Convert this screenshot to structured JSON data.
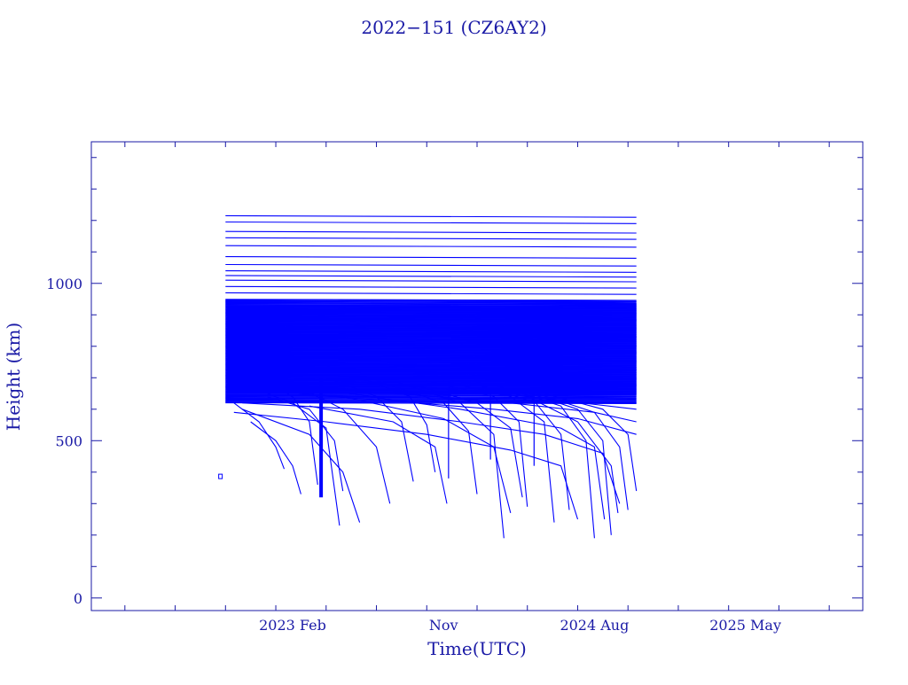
{
  "chart_data": {
    "type": "line",
    "title": "2022−151 (CZ6AY2)",
    "xlabel": "Time(UTC)",
    "ylabel": "Height (km)",
    "x_ticks": [
      "2023 Feb",
      "Nov",
      "2024 Aug",
      "2025 May"
    ],
    "y_ticks": [
      "0",
      "500",
      "1000"
    ],
    "xlim_months": [
      -12,
      34
    ],
    "ylim": [
      -40,
      1450
    ],
    "grid": false,
    "legend": "none",
    "colors": {
      "series": "#0000ff",
      "axes": "#1a1aa6"
    },
    "data_window_months": [
      -4.3,
      20.5
    ],
    "band": {
      "from": 620,
      "to": 950,
      "start_month": -4.0,
      "end_month": 20.5
    },
    "series": [
      {
        "values": [
          [
            -4.0,
            1215
          ],
          [
            20.5,
            1210
          ]
        ]
      },
      {
        "values": [
          [
            -4.0,
            1195
          ],
          [
            20.5,
            1190
          ]
        ]
      },
      {
        "values": [
          [
            -4.0,
            1165
          ],
          [
            20.5,
            1160
          ]
        ]
      },
      {
        "values": [
          [
            -4.0,
            1145
          ],
          [
            20.5,
            1140
          ]
        ]
      },
      {
        "values": [
          [
            -4.0,
            1120
          ],
          [
            20.5,
            1115
          ]
        ]
      },
      {
        "values": [
          [
            -4.0,
            1085
          ],
          [
            20.5,
            1080
          ]
        ]
      },
      {
        "values": [
          [
            -4.0,
            1060
          ],
          [
            20.5,
            1055
          ]
        ]
      },
      {
        "values": [
          [
            -4.0,
            1040
          ],
          [
            20.5,
            1035
          ]
        ]
      },
      {
        "values": [
          [
            -4.0,
            1025
          ],
          [
            20.5,
            1020
          ]
        ]
      },
      {
        "values": [
          [
            -4.0,
            1010
          ],
          [
            20.5,
            1005
          ]
        ]
      },
      {
        "values": [
          [
            -4.0,
            990
          ],
          [
            20.5,
            985
          ]
        ]
      },
      {
        "values": [
          [
            -4.0,
            970
          ],
          [
            20.5,
            965
          ]
        ]
      },
      {
        "values": [
          [
            -2.0,
            700
          ],
          [
            0.0,
            640
          ],
          [
            1.0,
            560
          ],
          [
            1.5,
            360
          ]
        ]
      },
      {
        "values": [
          [
            -3.0,
            680
          ],
          [
            0.0,
            620
          ],
          [
            2.0,
            540
          ],
          [
            2.8,
            230
          ]
        ]
      },
      {
        "values": [
          [
            -3.5,
            620
          ],
          [
            -2.0,
            560
          ],
          [
            -1.0,
            480
          ],
          [
            -0.5,
            410
          ]
        ]
      },
      {
        "values": [
          [
            -3.0,
            600
          ],
          [
            1.0,
            520
          ],
          [
            3.0,
            400
          ],
          [
            4.0,
            240
          ]
        ]
      },
      {
        "values": [
          [
            0.0,
            680
          ],
          [
            3.0,
            600
          ],
          [
            5.0,
            480
          ],
          [
            5.8,
            300
          ]
        ]
      },
      {
        "values": [
          [
            2.0,
            700
          ],
          [
            5.0,
            640
          ],
          [
            6.5,
            560
          ],
          [
            7.2,
            370
          ]
        ]
      },
      {
        "values": [
          [
            4.0,
            700
          ],
          [
            7.0,
            640
          ],
          [
            8.0,
            550
          ],
          [
            8.5,
            400
          ]
        ]
      },
      {
        "values": [
          [
            5.0,
            690
          ],
          [
            9.0,
            620
          ],
          [
            10.5,
            530
          ],
          [
            11.0,
            330
          ]
        ]
      },
      {
        "values": [
          [
            6.0,
            690
          ],
          [
            10.0,
            620
          ],
          [
            12.0,
            520
          ],
          [
            12.6,
            190
          ]
        ]
      },
      {
        "values": [
          [
            8.0,
            690
          ],
          [
            12.0,
            640
          ],
          [
            13.5,
            560
          ],
          [
            14.0,
            290
          ]
        ]
      },
      {
        "values": [
          [
            9.0,
            690
          ],
          [
            13.0,
            640
          ],
          [
            15.0,
            560
          ],
          [
            15.6,
            240
          ]
        ]
      },
      {
        "values": [
          [
            11.0,
            680
          ],
          [
            14.5,
            620
          ],
          [
            16.0,
            520
          ],
          [
            16.5,
            280
          ]
        ]
      },
      {
        "values": [
          [
            12.0,
            680
          ],
          [
            16.0,
            610
          ],
          [
            17.5,
            500
          ],
          [
            18.0,
            190
          ]
        ]
      },
      {
        "values": [
          [
            13.0,
            670
          ],
          [
            17.0,
            600
          ],
          [
            18.5,
            500
          ],
          [
            19.0,
            200
          ]
        ]
      },
      {
        "values": [
          [
            14.0,
            660
          ],
          [
            18.0,
            590
          ],
          [
            19.5,
            480
          ],
          [
            20.0,
            280
          ]
        ]
      },
      {
        "values": [
          [
            15.0,
            650
          ],
          [
            18.5,
            600
          ],
          [
            20.0,
            520
          ],
          [
            20.5,
            340
          ]
        ]
      },
      {
        "values": [
          [
            -3.5,
            590
          ],
          [
            2.0,
            560
          ],
          [
            8.0,
            520
          ],
          [
            13.0,
            470
          ],
          [
            16.0,
            420
          ],
          [
            17.0,
            250
          ]
        ]
      },
      {
        "values": [
          [
            -3.0,
            620
          ],
          [
            4.0,
            600
          ],
          [
            10.0,
            560
          ],
          [
            15.0,
            520
          ],
          [
            18.5,
            460
          ],
          [
            19.5,
            300
          ]
        ]
      },
      {
        "values": [
          [
            -2.0,
            660
          ],
          [
            5.0,
            630
          ],
          [
            12.0,
            600
          ],
          [
            17.0,
            570
          ],
          [
            20.5,
            520
          ]
        ]
      },
      {
        "values": [
          [
            -1.0,
            680
          ],
          [
            6.0,
            650
          ],
          [
            13.0,
            620
          ],
          [
            18.0,
            590
          ],
          [
            20.5,
            560
          ]
        ]
      },
      {
        "values": [
          [
            0.0,
            700
          ],
          [
            8.0,
            670
          ],
          [
            14.0,
            640
          ],
          [
            20.5,
            600
          ]
        ]
      },
      {
        "values": [
          [
            2.0,
            660
          ],
          [
            10.0,
            600
          ],
          [
            16.0,
            540
          ],
          [
            18.0,
            480
          ],
          [
            18.6,
            250
          ]
        ]
      },
      {
        "values": [
          [
            3.0,
            640
          ],
          [
            9.0,
            570
          ],
          [
            12.0,
            480
          ],
          [
            13.0,
            270
          ]
        ]
      },
      {
        "values": [
          [
            1.0,
            610
          ],
          [
            6.0,
            560
          ],
          [
            8.5,
            480
          ],
          [
            9.2,
            300
          ]
        ]
      },
      {
        "values": [
          [
            -1.5,
            640
          ],
          [
            1.0,
            600
          ],
          [
            2.5,
            500
          ],
          [
            3.0,
            340
          ]
        ]
      },
      {
        "values": [
          [
            -2.5,
            560
          ],
          [
            -1.0,
            500
          ],
          [
            0.0,
            420
          ],
          [
            0.5,
            330
          ]
        ]
      },
      {
        "values": [
          [
            10.0,
            690
          ],
          [
            14.0,
            640
          ],
          [
            17.0,
            560
          ],
          [
            19.0,
            420
          ],
          [
            19.4,
            270
          ]
        ]
      },
      {
        "values": [
          [
            7.0,
            680
          ],
          [
            11.0,
            620
          ],
          [
            13.0,
            540
          ],
          [
            13.7,
            320
          ]
        ]
      }
    ],
    "spikes": [
      {
        "month": 1.7,
        "from": 700,
        "to": 320
      },
      {
        "month": 11.8,
        "from": 660,
        "to": 440
      },
      {
        "month": 14.4,
        "from": 650,
        "to": 420
      },
      {
        "month": 9.3,
        "from": 670,
        "to": 380
      }
    ]
  }
}
